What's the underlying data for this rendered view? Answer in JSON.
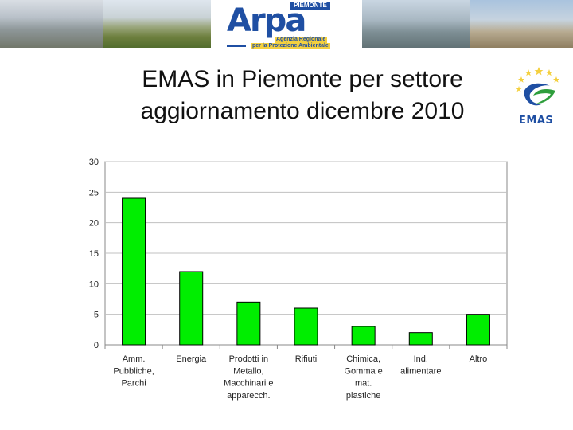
{
  "banner": {
    "logo_word": "Arpa",
    "logo_region": "PIEMONTE",
    "logo_sub1": "Agenzia Regionale",
    "logo_sub2": "per la Protezione Ambientale",
    "photo_icons": [
      "mountains-photo",
      "countryside-photo",
      "waterfall-photo",
      "castle-photo"
    ]
  },
  "title": {
    "line1": "EMAS in Piemonte per settore",
    "line2": "aggiornamento dicembre 2010"
  },
  "emas_logo": {
    "text": "EMAS",
    "colors": {
      "stars": "#f4d03f",
      "swoosh_blue": "#1f4fa3",
      "swoosh_green": "#2e9e3c"
    }
  },
  "chart_data": {
    "type": "bar",
    "categories": [
      [
        "Amm.",
        "Pubbliche,",
        "Parchi"
      ],
      [
        "Energia"
      ],
      [
        "Prodotti in",
        "Metallo,",
        "Macchinari e",
        "apparecch."
      ],
      [
        "Rifiuti"
      ],
      [
        "Chimica,",
        "Gomma e",
        "mat.",
        "plastiche"
      ],
      [
        "Ind.",
        "alimentare"
      ],
      [
        "Altro"
      ]
    ],
    "values": [
      24,
      12,
      7,
      6,
      3,
      2,
      5
    ],
    "ylim": [
      0,
      30
    ],
    "yticks": [
      0,
      5,
      10,
      15,
      20,
      25,
      30
    ],
    "grid": true,
    "colors": {
      "bar": "#00ee00",
      "bar_border": "#000000",
      "grid": "#c0c0c0",
      "axis": "#888888"
    }
  }
}
